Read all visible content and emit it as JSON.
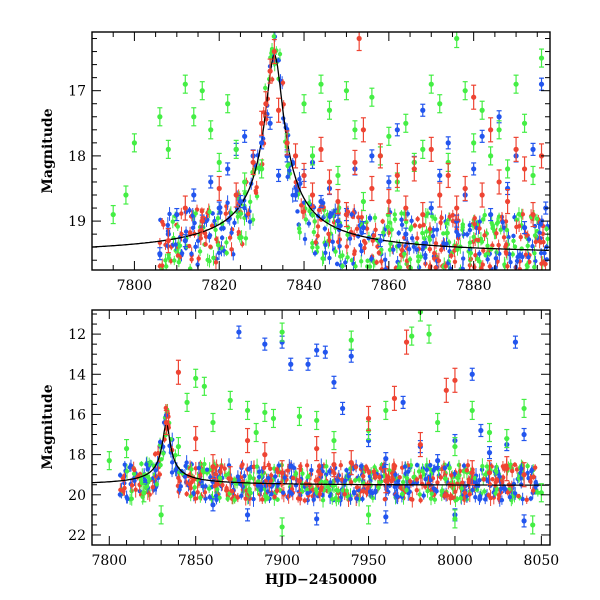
{
  "chart_data": [
    {
      "type": "scatter",
      "title": "",
      "xlabel": "",
      "ylabel": "Magnitude",
      "xlim": [
        7790,
        7898
      ],
      "ylim": [
        16.1,
        19.75
      ],
      "y_inverted": true,
      "xticks": [
        7800,
        7820,
        7840,
        7860,
        7880
      ],
      "yticks": [
        17,
        18,
        19
      ],
      "grid": false,
      "series": [
        {
          "color": "#2255ee",
          "points": [
            [
              7806,
              19.5
            ],
            [
              7808,
              19.2
            ],
            [
              7810,
              18.9
            ],
            [
              7812,
              19.3
            ],
            [
              7814,
              18.6
            ],
            [
              7816,
              19.0
            ],
            [
              7818,
              18.4
            ],
            [
              7820,
              18.8
            ],
            [
              7822,
              18.2
            ],
            [
              7824,
              17.9
            ],
            [
              7825,
              18.7
            ],
            [
              7826,
              17.7
            ],
            [
              7828,
              18.0
            ],
            [
              7830,
              17.8
            ],
            [
              7832,
              17.5
            ],
            [
              7834,
              18.3
            ],
            [
              7836,
              18.0
            ],
            [
              7838,
              18.6
            ],
            [
              7840,
              18.3
            ],
            [
              7842,
              18.1
            ],
            [
              7844,
              18.7
            ],
            [
              7846,
              18.5
            ],
            [
              7848,
              19.0
            ],
            [
              7850,
              18.9
            ],
            [
              7852,
              18.2
            ],
            [
              7854,
              19.1
            ],
            [
              7856,
              18.0
            ],
            [
              7858,
              19.3
            ],
            [
              7860,
              18.4
            ],
            [
              7862,
              17.6
            ],
            [
              7864,
              19.2
            ],
            [
              7866,
              18.1
            ],
            [
              7868,
              17.3
            ],
            [
              7870,
              18.8
            ],
            [
              7872,
              18.3
            ],
            [
              7874,
              17.8
            ],
            [
              7876,
              19.0
            ],
            [
              7878,
              18.6
            ],
            [
              7880,
              18.2
            ],
            [
              7882,
              17.7
            ],
            [
              7884,
              18.9
            ],
            [
              7886,
              17.4
            ],
            [
              7888,
              18.5
            ],
            [
              7890,
              18.0
            ],
            [
              7892,
              19.1
            ],
            [
              7894,
              17.9
            ],
            [
              7896,
              16.9
            ],
            [
              7897,
              18.8
            ]
          ]
        },
        {
          "color": "#44ee44",
          "points": [
            [
              7795,
              18.9
            ],
            [
              7798,
              18.6
            ],
            [
              7800,
              17.8
            ],
            [
              7806,
              17.4
            ],
            [
              7808,
              17.9
            ],
            [
              7812,
              16.9
            ],
            [
              7814,
              17.4
            ],
            [
              7816,
              17.0
            ],
            [
              7818,
              17.6
            ],
            [
              7820,
              18.1
            ],
            [
              7822,
              17.2
            ],
            [
              7824,
              17.9
            ],
            [
              7826,
              18.4
            ],
            [
              7830,
              18.2
            ],
            [
              7836,
              17.8
            ],
            [
              7840,
              17.2
            ],
            [
              7842,
              18.0
            ],
            [
              7844,
              16.9
            ],
            [
              7846,
              17.3
            ],
            [
              7848,
              18.3
            ],
            [
              7850,
              17.0
            ],
            [
              7852,
              17.6
            ],
            [
              7854,
              18.7
            ],
            [
              7856,
              17.1
            ],
            [
              7858,
              18.0
            ],
            [
              7860,
              17.7
            ],
            [
              7862,
              18.4
            ],
            [
              7864,
              17.5
            ],
            [
              7866,
              18.1
            ],
            [
              7868,
              17.9
            ],
            [
              7870,
              16.9
            ],
            [
              7872,
              17.2
            ],
            [
              7874,
              18.1
            ],
            [
              7876,
              16.2
            ],
            [
              7878,
              17.0
            ],
            [
              7880,
              17.8
            ],
            [
              7882,
              17.3
            ],
            [
              7884,
              18.0
            ],
            [
              7886,
              17.6
            ],
            [
              7888,
              18.2
            ],
            [
              7890,
              16.9
            ],
            [
              7892,
              17.5
            ],
            [
              7894,
              18.3
            ],
            [
              7896,
              16.5
            ]
          ]
        },
        {
          "color": "#ee4433",
          "points": [
            [
              7808,
              19.3
            ],
            [
              7812,
              18.8
            ],
            [
              7816,
              19.0
            ],
            [
              7820,
              18.5
            ],
            [
              7824,
              18.6
            ],
            [
              7828,
              18.1
            ],
            [
              7830,
              17.5
            ],
            [
              7831,
              17.2
            ],
            [
              7832,
              16.7
            ],
            [
              7833,
              16.4
            ],
            [
              7834,
              17.3
            ],
            [
              7836,
              17.8
            ],
            [
              7838,
              18.0
            ],
            [
              7840,
              18.3
            ],
            [
              7842,
              18.6
            ],
            [
              7844,
              17.9
            ],
            [
              7846,
              18.4
            ],
            [
              7848,
              18.7
            ],
            [
              7850,
              18.9
            ],
            [
              7852,
              18.1
            ],
            [
              7853,
              16.2
            ],
            [
              7854,
              17.6
            ],
            [
              7856,
              18.5
            ],
            [
              7858,
              18.0
            ],
            [
              7860,
              18.7
            ],
            [
              7862,
              18.3
            ],
            [
              7864,
              18.8
            ],
            [
              7866,
              18.2
            ],
            [
              7868,
              18.9
            ],
            [
              7870,
              17.9
            ],
            [
              7872,
              18.6
            ],
            [
              7874,
              18.3
            ],
            [
              7876,
              18.8
            ],
            [
              7878,
              18.5
            ],
            [
              7880,
              17.1
            ],
            [
              7882,
              18.6
            ],
            [
              7884,
              17.6
            ],
            [
              7886,
              18.4
            ],
            [
              7888,
              18.7
            ],
            [
              7890,
              17.9
            ],
            [
              7892,
              18.2
            ],
            [
              7894,
              18.9
            ],
            [
              7896,
              18.0
            ]
          ]
        }
      ]
    },
    {
      "type": "scatter",
      "title": "",
      "xlabel": "HJD−2450000",
      "ylabel": "Magnitude",
      "xlim": [
        7790,
        8055
      ],
      "ylim": [
        10.8,
        22.5
      ],
      "y_inverted": true,
      "xticks": [
        7800,
        7850,
        7900,
        7950,
        8000,
        8050
      ],
      "yticks": [
        12,
        14,
        16,
        18,
        20,
        22
      ],
      "grid": false,
      "series": [
        {
          "color": "#2255ee",
          "points": [
            [
              7875,
              11.9
            ],
            [
              7890,
              12.5
            ],
            [
              7900,
              12.4
            ],
            [
              7905,
              13.5
            ],
            [
              7915,
              13.5
            ],
            [
              7920,
              12.8
            ],
            [
              7925,
              12.9
            ],
            [
              7930,
              14.4
            ],
            [
              7935,
              15.7
            ],
            [
              7940,
              13.1
            ],
            [
              7950,
              17.3
            ],
            [
              7960,
              18.2
            ],
            [
              7970,
              15.4
            ],
            [
              7980,
              17.6
            ],
            [
              7990,
              18.3
            ],
            [
              8000,
              17.3
            ],
            [
              8010,
              14.0
            ],
            [
              8015,
              16.8
            ],
            [
              8020,
              17.9
            ],
            [
              8030,
              17.5
            ],
            [
              8035,
              12.4
            ],
            [
              8040,
              17.0
            ],
            [
              7860,
              20.5
            ],
            [
              7880,
              21.0
            ],
            [
              7920,
              21.2
            ],
            [
              7960,
              21.1
            ],
            [
              8000,
              21.0
            ],
            [
              8040,
              21.3
            ]
          ]
        },
        {
          "color": "#44ee44",
          "points": [
            [
              7800,
              18.3
            ],
            [
              7810,
              17.7
            ],
            [
              7820,
              19.9
            ],
            [
              7840,
              17.6
            ],
            [
              7845,
              15.4
            ],
            [
              7850,
              14.2
            ],
            [
              7855,
              14.6
            ],
            [
              7860,
              16.4
            ],
            [
              7870,
              15.3
            ],
            [
              7880,
              15.8
            ],
            [
              7885,
              16.9
            ],
            [
              7890,
              15.9
            ],
            [
              7895,
              16.2
            ],
            [
              7900,
              11.9
            ],
            [
              7910,
              16.1
            ],
            [
              7920,
              16.3
            ],
            [
              7930,
              17.3
            ],
            [
              7940,
              12.3
            ],
            [
              7950,
              16.8
            ],
            [
              7960,
              15.8
            ],
            [
              7975,
              12.1
            ],
            [
              7980,
              10.9
            ],
            [
              7985,
              12.0
            ],
            [
              7990,
              16.4
            ],
            [
              8000,
              17.6
            ],
            [
              8010,
              15.8
            ],
            [
              8020,
              16.9
            ],
            [
              8030,
              17.2
            ],
            [
              8040,
              15.7
            ],
            [
              8050,
              19.9
            ],
            [
              7830,
              21.0
            ],
            [
              7900,
              21.6
            ],
            [
              7950,
              21.0
            ],
            [
              8000,
              21.2
            ],
            [
              8045,
              21.5
            ]
          ]
        },
        {
          "color": "#ee4433",
          "points": [
            [
              7833,
              16.4
            ],
            [
              7840,
              13.9
            ],
            [
              7850,
              17.2
            ],
            [
              7860,
              18.6
            ],
            [
              7870,
              19.2
            ],
            [
              7880,
              17.3
            ],
            [
              7890,
              18.0
            ],
            [
              7900,
              18.9
            ],
            [
              7910,
              19.3
            ],
            [
              7920,
              17.7
            ],
            [
              7930,
              18.5
            ],
            [
              7940,
              18.4
            ],
            [
              7950,
              16.2
            ],
            [
              7960,
              19.3
            ],
            [
              7965,
              15.2
            ],
            [
              7972,
              12.4
            ],
            [
              7980,
              17.5
            ],
            [
              7995,
              14.8
            ],
            [
              8000,
              14.3
            ],
            [
              8010,
              18.9
            ],
            [
              8020,
              18.9
            ],
            [
              8030,
              18.7
            ],
            [
              8040,
              19.0
            ]
          ]
        }
      ]
    }
  ]
}
